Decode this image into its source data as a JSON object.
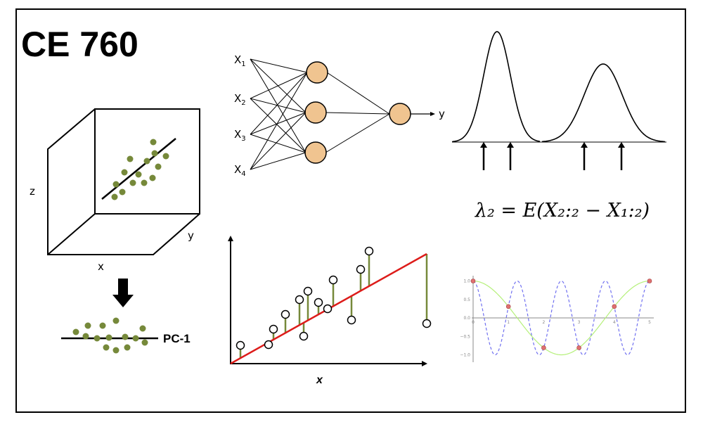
{
  "title": "CE 760",
  "pca": {
    "z_label": "z",
    "y_label": "y",
    "x_label": "x",
    "pc_label": "PC-1",
    "dot_color": "#76893a"
  },
  "nn": {
    "inputs": [
      {
        "base": "X",
        "sub": "1"
      },
      {
        "base": "X",
        "sub": "2"
      },
      {
        "base": "X",
        "sub": "3"
      },
      {
        "base": "X",
        "sub": "4"
      }
    ],
    "output_label": "y",
    "node_color": "#f0c490"
  },
  "regression": {
    "x_label": "x",
    "line_color": "#dd1c1a",
    "residual_color": "#76893a"
  },
  "order_stats": {
    "formula": "λ₂ = E(X₂:₂ − X₁:₂)"
  },
  "cosine_plot": {
    "x_ticks": [
      "0",
      "1",
      "2",
      "3",
      "4",
      "5"
    ],
    "y_ticks": [
      "1.0",
      "0.5",
      "0.0",
      "−0.5",
      "−1.0"
    ],
    "solid_color": "#b5f07a",
    "dashed_color": "#7070f0",
    "point_color": "#e07070"
  }
}
